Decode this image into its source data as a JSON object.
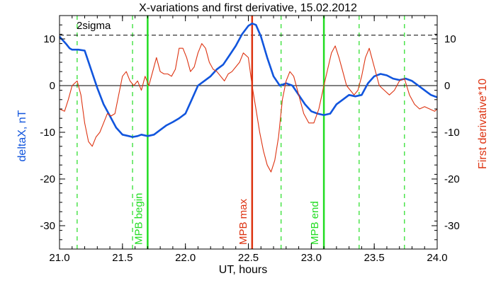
{
  "chart_data": {
    "type": "line",
    "title": "X-variations and first derivative, 15.02.2012",
    "xlabel": "UT, hours",
    "ylabel_left": "deltaX, nT",
    "ylabel_right": "First derivative*10",
    "xlim": [
      21.0,
      24.0
    ],
    "ylim": [
      -35,
      15
    ],
    "xticks": [
      21.0,
      21.5,
      22.0,
      22.5,
      23.0,
      23.5,
      24.0
    ],
    "xtick_labels": [
      "21.0",
      "21.5",
      "22.0",
      "22.5",
      "23.0",
      "23.5",
      "24.0"
    ],
    "yticks": [
      10,
      0,
      -10,
      -20,
      -30
    ],
    "ytick_labels": [
      "10",
      "0",
      "-10",
      "-20",
      "-30"
    ],
    "threshold": {
      "label": "2sigma",
      "y": 10.8
    },
    "zero_line": 0,
    "vertical_markers": [
      {
        "x": 21.7,
        "label": "MPB begin",
        "color": "#22dd22"
      },
      {
        "x": 22.53,
        "label": "MPB max",
        "color": "#dd3311"
      },
      {
        "x": 23.1,
        "label": "MPB end",
        "color": "#22dd22"
      }
    ],
    "dashed_markers": [
      21.14,
      21.58,
      22.76,
      23.38,
      23.74
    ],
    "series": [
      {
        "color": "#1155dd",
        "x": [
          21.0,
          21.05,
          21.08,
          21.1,
          21.15,
          21.2,
          21.25,
          21.3,
          21.35,
          21.4,
          21.45,
          21.5,
          21.55,
          21.58,
          21.62,
          21.65,
          21.7,
          21.75,
          21.8,
          21.85,
          21.9,
          21.95,
          22.0,
          22.05,
          22.1,
          22.15,
          22.2,
          22.25,
          22.3,
          22.35,
          22.4,
          22.45,
          22.5,
          22.53,
          22.56,
          22.6,
          22.65,
          22.7,
          22.75,
          22.8,
          22.85,
          22.9,
          22.95,
          23.0,
          23.05,
          23.1,
          23.15,
          23.2,
          23.25,
          23.3,
          23.35,
          23.4,
          23.45,
          23.5,
          23.55,
          23.6,
          23.65,
          23.7,
          23.75,
          23.8,
          23.85,
          23.9,
          23.95,
          24.0
        ],
        "values": [
          10.5,
          9.0,
          8.0,
          7.7,
          7.7,
          7.5,
          3.5,
          -0.5,
          -4.0,
          -6.5,
          -9.0,
          -10.5,
          -10.8,
          -11.0,
          -10.8,
          -10.5,
          -10.8,
          -10.5,
          -9.5,
          -8.5,
          -7.8,
          -7.0,
          -6.0,
          -3.0,
          0.0,
          1.0,
          2.0,
          3.5,
          4.5,
          6.5,
          8.5,
          11.0,
          12.8,
          13.3,
          13.0,
          10.5,
          6.0,
          2.0,
          0.0,
          0.5,
          0.0,
          -2.0,
          -4.0,
          -5.5,
          -6.0,
          -6.3,
          -6.0,
          -4.0,
          -3.0,
          -2.0,
          -2.3,
          -2.0,
          0.5,
          2.0,
          2.5,
          2.2,
          1.5,
          1.2,
          1.5,
          1.0,
          0.0,
          -1.0,
          -2.0,
          -2.5
        ]
      },
      {
        "color": "#dd3311",
        "x": [
          21.0,
          21.04,
          21.07,
          21.1,
          21.14,
          21.17,
          21.2,
          21.23,
          21.26,
          21.29,
          21.32,
          21.35,
          21.38,
          21.41,
          21.44,
          21.47,
          21.5,
          21.53,
          21.56,
          21.59,
          21.62,
          21.65,
          21.68,
          21.71,
          21.74,
          21.77,
          21.8,
          21.83,
          21.86,
          21.89,
          21.92,
          21.95,
          21.98,
          22.01,
          22.04,
          22.07,
          22.1,
          22.13,
          22.16,
          22.19,
          22.22,
          22.25,
          22.28,
          22.31,
          22.34,
          22.37,
          22.4,
          22.43,
          22.46,
          22.5,
          22.53,
          22.56,
          22.59,
          22.62,
          22.65,
          22.68,
          22.71,
          22.74,
          22.77,
          22.8,
          22.83,
          22.86,
          22.9,
          22.94,
          22.98,
          23.02,
          23.06,
          23.1,
          23.13,
          23.16,
          23.19,
          23.22,
          23.25,
          23.28,
          23.31,
          23.34,
          23.37,
          23.4,
          23.43,
          23.46,
          23.5,
          23.54,
          23.58,
          23.62,
          23.66,
          23.7,
          23.74,
          23.78,
          23.82,
          23.86,
          23.9,
          23.94,
          23.98,
          24.0
        ],
        "values": [
          -5.0,
          -5.5,
          -3.0,
          0.0,
          1.0,
          -2.0,
          -8.0,
          -12.0,
          -13.0,
          -11.0,
          -10.0,
          -8.0,
          -6.0,
          -6.5,
          -6.0,
          -2.0,
          2.0,
          3.0,
          1.0,
          0.0,
          1.0,
          -1.0,
          2.0,
          0.0,
          3.0,
          6.0,
          3.0,
          2.5,
          2.5,
          2.0,
          3.5,
          8.0,
          8.0,
          6.0,
          3.0,
          4.0,
          7.0,
          9.0,
          8.0,
          5.0,
          3.5,
          3.0,
          2.0,
          1.0,
          2.5,
          3.0,
          4.0,
          5.0,
          7.0,
          6.0,
          0.0,
          -5.0,
          -10.0,
          -14.0,
          -17.0,
          -18.5,
          -16.0,
          -11.0,
          -3.0,
          1.0,
          3.0,
          2.0,
          -2.0,
          -6.0,
          -8.0,
          -8.0,
          -5.0,
          0.0,
          3.5,
          7.0,
          8.5,
          6.0,
          3.0,
          0.0,
          -1.0,
          -2.0,
          -1.0,
          2.0,
          6.0,
          8.0,
          4.0,
          0.0,
          -1.0,
          -2.0,
          -1.0,
          1.0,
          1.5,
          -2.0,
          -4.0,
          -5.0,
          -4.5,
          -5.0,
          -5.5,
          -5.0
        ]
      }
    ],
    "axis_colors": {
      "left_label": "#1155dd",
      "right_label": "#dd3311"
    }
  }
}
